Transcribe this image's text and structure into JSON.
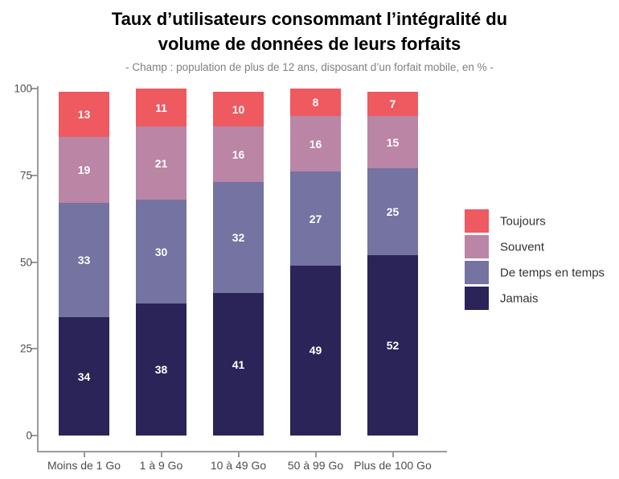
{
  "header": {
    "title_line1": "Taux d’utilisateurs consommant l’intégralité du",
    "title_line2": "volume de données de leurs forfaits",
    "subtitle": "- Champ : population de plus de 12 ans, disposant d’un forfait mobile, en % -"
  },
  "chart_data": {
    "type": "bar",
    "stacked": true,
    "categories": [
      "Moins de 1 Go",
      "1 à 9 Go",
      "10 à 49 Go",
      "50 à 99 Go",
      "Plus de 100 Go"
    ],
    "series": [
      {
        "name": "Jamais",
        "color": "#2a2459",
        "values": [
          34,
          38,
          41,
          49,
          52
        ]
      },
      {
        "name": "De temps en temps",
        "color": "#7473a1",
        "values": [
          33,
          30,
          32,
          27,
          25
        ]
      },
      {
        "name": "Souvent",
        "color": "#bb85a5",
        "values": [
          19,
          21,
          16,
          16,
          15
        ]
      },
      {
        "name": "Toujours",
        "color": "#ee5a60",
        "values": [
          13,
          11,
          10,
          8,
          7
        ]
      }
    ],
    "legend_order": [
      "Toujours",
      "Souvent",
      "De temps en temps",
      "Jamais"
    ],
    "legend_position": "right",
    "yticks": [
      0,
      25,
      50,
      75,
      100
    ],
    "ylim": [
      0,
      100
    ],
    "xlabel": "",
    "ylabel": "",
    "grid": false,
    "value_labels_color": "#ffffff",
    "axis_color": "#9a9a9a",
    "tick_label_color": "#4d4d4d"
  }
}
